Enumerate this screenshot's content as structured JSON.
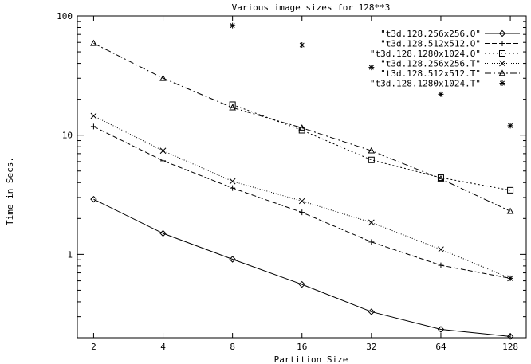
{
  "chart_data": {
    "type": "line",
    "title": "Various image sizes for 128**3",
    "xlabel": "Partition Size",
    "ylabel": "Time in Secs.",
    "x_scale": "log2",
    "y_scale": "log10",
    "xlim": [
      1.7,
      150
    ],
    "ylim": [
      0.2,
      100
    ],
    "x_ticks": [
      "2",
      "4",
      "8",
      "16",
      "32",
      "64",
      "128"
    ],
    "y_ticks": [
      "1",
      "10",
      "100"
    ],
    "legend_position": "top-right",
    "series": [
      {
        "name": "\"t3d.128.256x256.O\"",
        "marker": "diamond",
        "dash": "solid",
        "x": [
          2,
          4,
          8,
          16,
          32,
          64,
          128
        ],
        "y": [
          2.9,
          1.5,
          0.91,
          0.56,
          0.33,
          0.235,
          0.205
        ]
      },
      {
        "name": "\"t3d.128.512x512.O\"",
        "marker": "plus",
        "dash": "dashed",
        "x": [
          2,
          4,
          8,
          16,
          32,
          64,
          128
        ],
        "y": [
          11.8,
          6.1,
          3.6,
          2.25,
          1.27,
          0.81,
          0.63
        ]
      },
      {
        "name": "\"t3d.128.1280x1024.O\"",
        "marker": "square",
        "dash": "dotted",
        "x": [
          8,
          16,
          32,
          64,
          128
        ],
        "y": [
          18,
          11,
          6.2,
          4.4,
          3.45
        ]
      },
      {
        "name": "\"t3d.128.256x256.T\"",
        "marker": "cross",
        "dash": "dotted-fine",
        "x": [
          2,
          4,
          8,
          16,
          32,
          64,
          128
        ],
        "y": [
          14.5,
          7.4,
          4.1,
          2.8,
          1.85,
          1.1,
          0.63
        ]
      },
      {
        "name": "\"t3d.128.512x512.T\"",
        "marker": "triangle",
        "dash": "dashdot",
        "x": [
          2,
          4,
          8,
          16,
          32,
          64,
          128
        ],
        "y": [
          59,
          30,
          17,
          11.5,
          7.4,
          4.3,
          2.3
        ]
      },
      {
        "name": "\"t3d.128.1280x1024.T\"",
        "marker": "star",
        "dash": "none",
        "x": [
          8,
          16,
          32,
          64,
          128
        ],
        "y": [
          83,
          57,
          37,
          22,
          12
        ]
      }
    ]
  }
}
